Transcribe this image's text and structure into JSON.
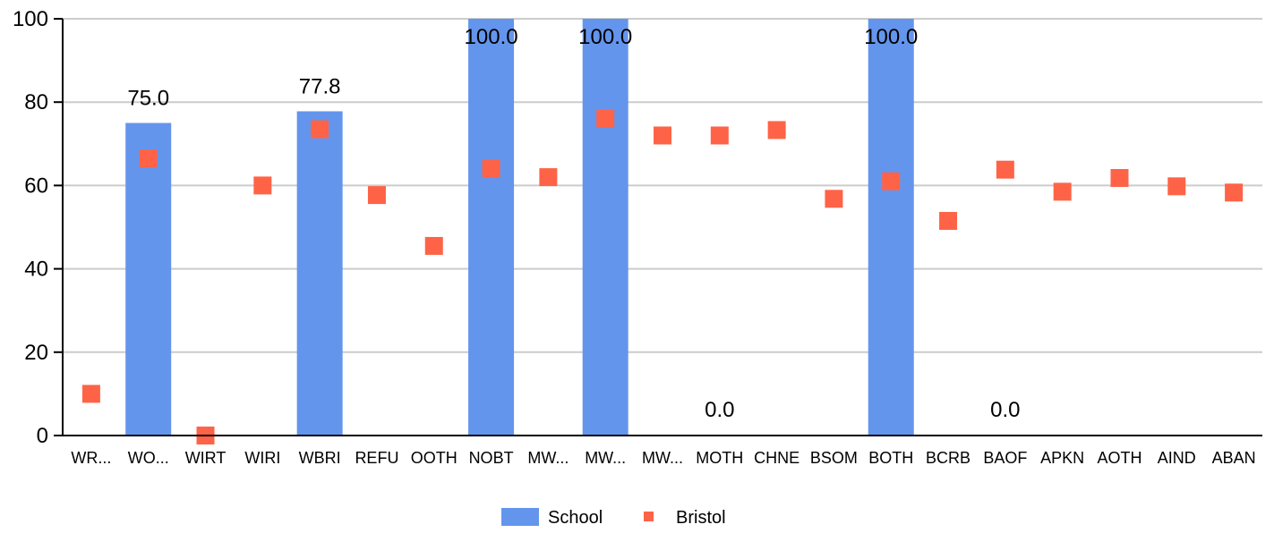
{
  "chart_data": {
    "type": "bar",
    "categories": [
      "WR...",
      "WO...",
      "WIRT",
      "WIRI",
      "WBRI",
      "REFU",
      "OOTH",
      "NOBT",
      "MW...",
      "MW...",
      "MW...",
      "MOTH",
      "CHNE",
      "BSOM",
      "BOTH",
      "BCRB",
      "BAOF",
      "APKN",
      "AOTH",
      "AIND",
      "ABAN"
    ],
    "ylim": [
      0,
      100
    ],
    "yticks": [
      0,
      20,
      40,
      60,
      80,
      100
    ],
    "grid": true,
    "legend_position": "bottom",
    "series": [
      {
        "name": "School",
        "type": "bar",
        "color": "#6495ED",
        "values": [
          null,
          75.0,
          null,
          null,
          77.8,
          null,
          null,
          100.0,
          null,
          100.0,
          null,
          0.0,
          null,
          null,
          100.0,
          null,
          0.0,
          null,
          null,
          null,
          null
        ],
        "data_labels": [
          null,
          "75.0",
          null,
          null,
          "77.8",
          null,
          null,
          "100.0",
          null,
          "100.0",
          null,
          "0.0",
          null,
          null,
          "100.0",
          null,
          "0.0",
          null,
          null,
          null,
          null
        ]
      },
      {
        "name": "Bristol",
        "type": "scatter",
        "marker": "square",
        "color": "#FF6347",
        "values": [
          10,
          66.5,
          0,
          60,
          73.5,
          57.7,
          45.5,
          64,
          62,
          76,
          72,
          72,
          73.3,
          56.8,
          61,
          51.5,
          63.8,
          58.5,
          61.8,
          59.8,
          58.3
        ]
      }
    ]
  }
}
